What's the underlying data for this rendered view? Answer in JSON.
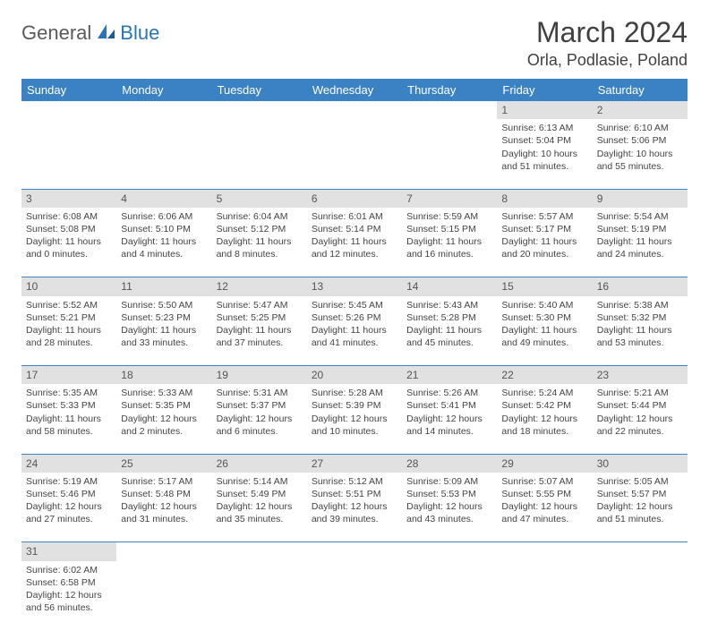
{
  "logo": {
    "text1": "General",
    "text2": "Blue"
  },
  "title": "March 2024",
  "location": "Orla, Podlasie, Poland",
  "colors": {
    "header_bg": "#3b82c4",
    "header_text": "#ffffff",
    "daynum_bg": "#e1e1e1",
    "border": "#3b82c4",
    "logo_gray": "#5a5a5a",
    "logo_blue": "#2a74b8"
  },
  "weekdays": [
    "Sunday",
    "Monday",
    "Tuesday",
    "Wednesday",
    "Thursday",
    "Friday",
    "Saturday"
  ],
  "weeks": [
    {
      "nums": [
        "",
        "",
        "",
        "",
        "",
        "1",
        "2"
      ],
      "cells": [
        null,
        null,
        null,
        null,
        null,
        {
          "sunrise": "6:13 AM",
          "sunset": "5:04 PM",
          "dl1": "10 hours",
          "dl2": "and 51 minutes."
        },
        {
          "sunrise": "6:10 AM",
          "sunset": "5:06 PM",
          "dl1": "10 hours",
          "dl2": "and 55 minutes."
        }
      ]
    },
    {
      "nums": [
        "3",
        "4",
        "5",
        "6",
        "7",
        "8",
        "9"
      ],
      "cells": [
        {
          "sunrise": "6:08 AM",
          "sunset": "5:08 PM",
          "dl1": "11 hours",
          "dl2": "and 0 minutes."
        },
        {
          "sunrise": "6:06 AM",
          "sunset": "5:10 PM",
          "dl1": "11 hours",
          "dl2": "and 4 minutes."
        },
        {
          "sunrise": "6:04 AM",
          "sunset": "5:12 PM",
          "dl1": "11 hours",
          "dl2": "and 8 minutes."
        },
        {
          "sunrise": "6:01 AM",
          "sunset": "5:14 PM",
          "dl1": "11 hours",
          "dl2": "and 12 minutes."
        },
        {
          "sunrise": "5:59 AM",
          "sunset": "5:15 PM",
          "dl1": "11 hours",
          "dl2": "and 16 minutes."
        },
        {
          "sunrise": "5:57 AM",
          "sunset": "5:17 PM",
          "dl1": "11 hours",
          "dl2": "and 20 minutes."
        },
        {
          "sunrise": "5:54 AM",
          "sunset": "5:19 PM",
          "dl1": "11 hours",
          "dl2": "and 24 minutes."
        }
      ]
    },
    {
      "nums": [
        "10",
        "11",
        "12",
        "13",
        "14",
        "15",
        "16"
      ],
      "cells": [
        {
          "sunrise": "5:52 AM",
          "sunset": "5:21 PM",
          "dl1": "11 hours",
          "dl2": "and 28 minutes."
        },
        {
          "sunrise": "5:50 AM",
          "sunset": "5:23 PM",
          "dl1": "11 hours",
          "dl2": "and 33 minutes."
        },
        {
          "sunrise": "5:47 AM",
          "sunset": "5:25 PM",
          "dl1": "11 hours",
          "dl2": "and 37 minutes."
        },
        {
          "sunrise": "5:45 AM",
          "sunset": "5:26 PM",
          "dl1": "11 hours",
          "dl2": "and 41 minutes."
        },
        {
          "sunrise": "5:43 AM",
          "sunset": "5:28 PM",
          "dl1": "11 hours",
          "dl2": "and 45 minutes."
        },
        {
          "sunrise": "5:40 AM",
          "sunset": "5:30 PM",
          "dl1": "11 hours",
          "dl2": "and 49 minutes."
        },
        {
          "sunrise": "5:38 AM",
          "sunset": "5:32 PM",
          "dl1": "11 hours",
          "dl2": "and 53 minutes."
        }
      ]
    },
    {
      "nums": [
        "17",
        "18",
        "19",
        "20",
        "21",
        "22",
        "23"
      ],
      "cells": [
        {
          "sunrise": "5:35 AM",
          "sunset": "5:33 PM",
          "dl1": "11 hours",
          "dl2": "and 58 minutes."
        },
        {
          "sunrise": "5:33 AM",
          "sunset": "5:35 PM",
          "dl1": "12 hours",
          "dl2": "and 2 minutes."
        },
        {
          "sunrise": "5:31 AM",
          "sunset": "5:37 PM",
          "dl1": "12 hours",
          "dl2": "and 6 minutes."
        },
        {
          "sunrise": "5:28 AM",
          "sunset": "5:39 PM",
          "dl1": "12 hours",
          "dl2": "and 10 minutes."
        },
        {
          "sunrise": "5:26 AM",
          "sunset": "5:41 PM",
          "dl1": "12 hours",
          "dl2": "and 14 minutes."
        },
        {
          "sunrise": "5:24 AM",
          "sunset": "5:42 PM",
          "dl1": "12 hours",
          "dl2": "and 18 minutes."
        },
        {
          "sunrise": "5:21 AM",
          "sunset": "5:44 PM",
          "dl1": "12 hours",
          "dl2": "and 22 minutes."
        }
      ]
    },
    {
      "nums": [
        "24",
        "25",
        "26",
        "27",
        "28",
        "29",
        "30"
      ],
      "cells": [
        {
          "sunrise": "5:19 AM",
          "sunset": "5:46 PM",
          "dl1": "12 hours",
          "dl2": "and 27 minutes."
        },
        {
          "sunrise": "5:17 AM",
          "sunset": "5:48 PM",
          "dl1": "12 hours",
          "dl2": "and 31 minutes."
        },
        {
          "sunrise": "5:14 AM",
          "sunset": "5:49 PM",
          "dl1": "12 hours",
          "dl2": "and 35 minutes."
        },
        {
          "sunrise": "5:12 AM",
          "sunset": "5:51 PM",
          "dl1": "12 hours",
          "dl2": "and 39 minutes."
        },
        {
          "sunrise": "5:09 AM",
          "sunset": "5:53 PM",
          "dl1": "12 hours",
          "dl2": "and 43 minutes."
        },
        {
          "sunrise": "5:07 AM",
          "sunset": "5:55 PM",
          "dl1": "12 hours",
          "dl2": "and 47 minutes."
        },
        {
          "sunrise": "5:05 AM",
          "sunset": "5:57 PM",
          "dl1": "12 hours",
          "dl2": "and 51 minutes."
        }
      ]
    },
    {
      "nums": [
        "31",
        "",
        "",
        "",
        "",
        "",
        ""
      ],
      "cells": [
        {
          "sunrise": "6:02 AM",
          "sunset": "6:58 PM",
          "dl1": "12 hours",
          "dl2": "and 56 minutes."
        },
        null,
        null,
        null,
        null,
        null,
        null
      ],
      "last": true
    }
  ],
  "labels": {
    "sunrise": "Sunrise:",
    "sunset": "Sunset:",
    "daylight": "Daylight:"
  }
}
